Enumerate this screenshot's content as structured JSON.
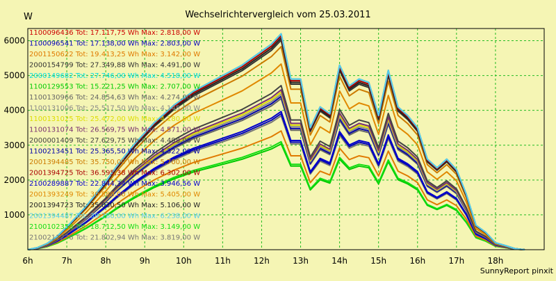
{
  "app": {
    "credit": "SunnyReport pinxit"
  },
  "chart_data": {
    "type": "line",
    "title": "Wechselrichtervergleich vom 25.03.2011",
    "ylabel": "W",
    "xlabel": "",
    "x_ticks": [
      "6h",
      "7h",
      "8h",
      "9h",
      "10h",
      "11h",
      "12h",
      "13h",
      "14h",
      "15h",
      "16h",
      "17h",
      "18h"
    ],
    "y_ticks": [
      1000,
      2000,
      3000,
      4000,
      5000,
      6000
    ],
    "xlim": [
      6.0,
      19.25
    ],
    "ylim": [
      0,
      6350
    ],
    "grid": true,
    "legend_position": "top-left",
    "colors": {
      "background": "#f5f5b4",
      "plot_border": "#000000",
      "grid": "#22bb22",
      "title": "#000000"
    },
    "series": [
      {
        "name": "1100096436",
        "summary": "Tot: 17.117,75 Wh Max: 2.818,00 W",
        "color": "#cc0000",
        "scale": 1.0
      },
      {
        "name": "1100096541",
        "summary": "Tot: 17.138,00 Wh Max: 2.803,00 W",
        "color": "#0000bb",
        "scale": 0.63
      },
      {
        "name": "2001150622",
        "summary": "Tot: 19.413,25 Wh Max: 3.142,00 W",
        "color": "#e07a00",
        "scale": 0.55
      },
      {
        "name": "2000154799",
        "summary": "Tot: 27.349,88 Wh Max: 4.491,00 W",
        "color": "#333333",
        "scale": 0.97
      },
      {
        "name": "2000149682",
        "summary": "Tot: 27.746,00 Wh Max: 4.518,00 W",
        "color": "#00dddd",
        "scale": 1.0
      },
      {
        "name": "1100129553",
        "summary": "Tot: 15.221,25 Wh Max: 2.707,00 W",
        "color": "#00cc00",
        "scale": 0.49
      },
      {
        "name": "1100130966",
        "summary": "Tot: 24.854,63 Wh Max: 4.274,00 W",
        "color": "#666666",
        "scale": 0.7
      },
      {
        "name": "1100131006",
        "summary": "Tot: 25.517,50 Wh Max: 4.145,00 W",
        "color": "#8a8a8a",
        "scale": 0.72
      },
      {
        "name": "1100131025",
        "summary": "Tot: 25.472,00 Wh Max: 4.180,00 W",
        "color": "#dddd00",
        "scale": 0.73
      },
      {
        "name": "1100131074",
        "summary": "Tot: 26.569,75 Wh Max: 4.571,00 W",
        "color": "#7a3070",
        "scale": 0.74
      },
      {
        "name": "2000001409",
        "summary": "Tot: 27.629,75 Wh Max: 4.498,00 W",
        "color": "#444444",
        "scale": 0.76
      },
      {
        "name": "1100213451",
        "summary": "Tot: 25.365,50 Wh Max: 4.322,00 W",
        "color": "#0000aa",
        "scale": 0.71
      },
      {
        "name": "2001394485",
        "summary": "Tot: 35.750,00 Wh Max: 5.700,00 W",
        "color": "#cc7a00",
        "scale": 0.94
      },
      {
        "name": "2001394725",
        "summary": "Tot: 36.595,38 Wh Max: 6.302,00 W",
        "color": "#aa0000",
        "scale": 0.99
      },
      {
        "name": "2100289887",
        "summary": "Tot: 22.844,34 Wh Max: 3.946,56 W",
        "color": "#0000cc",
        "scale": 0.64
      },
      {
        "name": "2001393249",
        "summary": "Tot: 30.580,00 Wh Max: 5.405,00 W",
        "color": "#e08800",
        "scale": 0.86
      },
      {
        "name": "2001394723",
        "summary": "Tot: 35.030,50 Wh Max: 5.106,00 W",
        "color": "#222222",
        "scale": 0.98
      },
      {
        "name": "2001394487",
        "summary": "Tot: 39.280,00 Wh Max: 6.238,00 W",
        "color": "#55ccee",
        "scale": 1.0
      },
      {
        "name": "2100102358",
        "summary": "Tot: 18.712,50 Wh Max: 3.149,00 W",
        "color": "#11dd11",
        "scale": 0.5
      },
      {
        "name": "2100211276",
        "summary": "Tot: 21.802,94 Wh Max: 3.819,00 W",
        "color": "#777777",
        "scale": 0.62
      }
    ],
    "base_x": [
      6.0,
      6.25,
      6.5,
      6.75,
      7.0,
      7.25,
      7.5,
      7.75,
      8.0,
      8.25,
      8.5,
      8.75,
      9.0,
      9.25,
      9.5,
      9.75,
      10.0,
      10.25,
      10.5,
      10.75,
      11.0,
      11.25,
      11.5,
      11.75,
      12.0,
      12.25,
      12.5,
      12.75,
      13.0,
      13.25,
      13.5,
      13.75,
      14.0,
      14.25,
      14.5,
      14.75,
      15.0,
      15.25,
      15.5,
      15.75,
      16.0,
      16.25,
      16.5,
      16.75,
      17.0,
      17.25,
      17.5,
      17.75,
      18.0,
      18.25,
      18.5,
      18.75
    ],
    "base_y": [
      0,
      60,
      180,
      380,
      650,
      950,
      1250,
      1600,
      1950,
      2350,
      2700,
      3050,
      3350,
      3650,
      3900,
      4150,
      4350,
      4550,
      4700,
      4850,
      5000,
      5150,
      5300,
      5500,
      5700,
      5900,
      6200,
      4900,
      4900,
      3500,
      4100,
      3900,
      5300,
      4700,
      4900,
      4800,
      3850,
      5150,
      4100,
      3850,
      3500,
      2600,
      2350,
      2600,
      2300,
      1600,
      700,
      500,
      200,
      120,
      30,
      0
    ]
  }
}
